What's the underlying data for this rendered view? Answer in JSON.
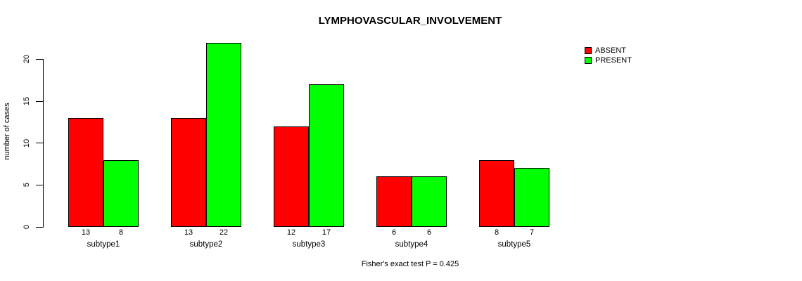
{
  "chart_data": {
    "type": "bar",
    "title": "LYMPHOVASCULAR_INVOLVEMENT",
    "ylabel": "number of cases",
    "xlabel": "",
    "caption": "Fisher's exact test P = 0.425",
    "categories": [
      "subtype1",
      "subtype2",
      "subtype3",
      "subtype4",
      "subtype5"
    ],
    "series": [
      {
        "name": "ABSENT",
        "color": "#FF0000",
        "values": [
          13,
          13,
          12,
          6,
          8
        ]
      },
      {
        "name": "PRESENT",
        "color": "#00FF00",
        "values": [
          8,
          22,
          17,
          6,
          7
        ]
      }
    ],
    "bar_value_labels": [
      [
        13,
        8
      ],
      [
        13,
        22
      ],
      [
        12,
        17
      ],
      [
        6,
        6
      ],
      [
        8,
        7
      ]
    ],
    "yticks": [
      0,
      5,
      10,
      15,
      20
    ],
    "ylim": [
      0,
      22
    ],
    "grid": false,
    "legend_position": "top-right",
    "axis_color": "#000000",
    "background_color": "#FFFFFF"
  }
}
